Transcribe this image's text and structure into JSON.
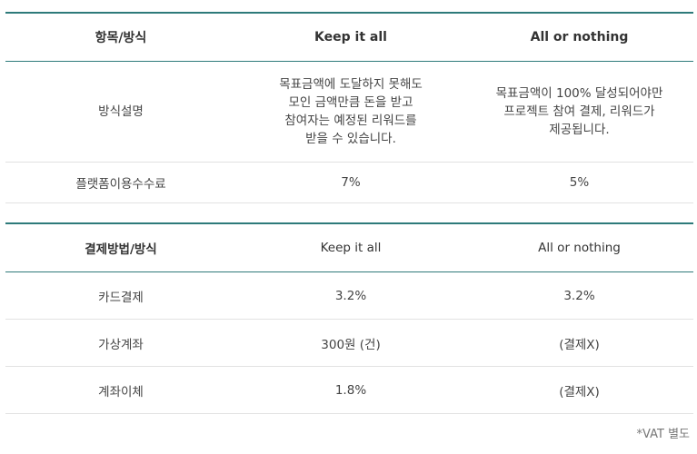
{
  "table1": {
    "headers": [
      "항목/방식",
      "Keep it all",
      "All or nothing"
    ],
    "description": {
      "label": "방식설명",
      "keep_lines": [
        "목표금액에 도달하지 못해도",
        "모인 금액만큼 돈을 받고",
        "참여자는 예정된 리워드를",
        "받을 수 있습니다."
      ],
      "aon_lines": [
        "목표금액이 100% 달성되어야만",
        "프로젝트 참여 결제, 리워드가",
        "제공됩니다."
      ]
    },
    "platform_fee": {
      "label": "플랫폼이용수수료",
      "keep": "7%",
      "aon": "5%"
    }
  },
  "table2": {
    "headers": [
      "결제방법/방식",
      "Keep it all",
      "All or nothing"
    ],
    "rows": [
      {
        "method": "카드결제",
        "keep": "3.2%",
        "aon": "3.2%"
      },
      {
        "method": "가상계좌",
        "keep": "300원 (건)",
        "aon": "(결제X)"
      },
      {
        "method": "계좌이체",
        "keep": "1.8%",
        "aon": "(결제X)"
      }
    ]
  },
  "note": "*VAT 별도",
  "colors": {
    "accent_border": "#2e7a7a",
    "row_border": "#e2e2e2",
    "text": "#444444"
  }
}
